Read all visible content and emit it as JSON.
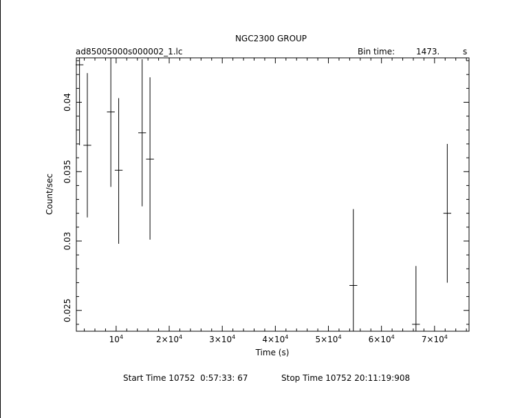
{
  "header": {
    "title": "NGC2300 GROUP",
    "file_name": "ad85005000s000002_1.lc",
    "bin_time_label": "Bin time:",
    "bin_time_value": "1473.",
    "bin_time_unit": "s"
  },
  "footer": {
    "start_label": "Start Time 10752  0:57:33: 67",
    "stop_label": "Stop Time 10752 20:11:19:908"
  },
  "chart_data": {
    "type": "scatter",
    "title": "NGC2300 GROUP",
    "xlabel": "Time (s)",
    "ylabel": "Count/sec",
    "xlim": [
      2500,
      76500
    ],
    "ylim": [
      0.0235,
      0.0432
    ],
    "grid": false,
    "x_ticks": [
      {
        "value": 10000,
        "base": "10",
        "exp": "4"
      },
      {
        "value": 20000,
        "base": "2×10",
        "exp": "4"
      },
      {
        "value": 30000,
        "base": "3×10",
        "exp": "4"
      },
      {
        "value": 40000,
        "base": "4×10",
        "exp": "4"
      },
      {
        "value": 50000,
        "base": "5×10",
        "exp": "4"
      },
      {
        "value": 60000,
        "base": "6×10",
        "exp": "4"
      },
      {
        "value": 70000,
        "base": "7×10",
        "exp": "4"
      }
    ],
    "y_ticks": [
      {
        "value": 0.025,
        "label": "0.025"
      },
      {
        "value": 0.03,
        "label": "0.03"
      },
      {
        "value": 0.035,
        "label": "0.035"
      },
      {
        "value": 0.04,
        "label": "0.04"
      }
    ],
    "points": [
      {
        "x": 3100,
        "y": 0.0427,
        "xerr": 736,
        "yerr_low": 0.0058,
        "yerr_high": 0.0058
      },
      {
        "x": 4570,
        "y": 0.0369,
        "xerr": 736,
        "yerr_low": 0.0052,
        "yerr_high": 0.0052
      },
      {
        "x": 9000,
        "y": 0.0393,
        "xerr": 736,
        "yerr_low": 0.0054,
        "yerr_high": 0.0054
      },
      {
        "x": 10480,
        "y": 0.0351,
        "xerr": 736,
        "yerr_low": 0.0053,
        "yerr_high": 0.0052
      },
      {
        "x": 14900,
        "y": 0.0378,
        "xerr": 736,
        "yerr_low": 0.0053,
        "yerr_high": 0.0053
      },
      {
        "x": 16380,
        "y": 0.0359,
        "xerr": 736,
        "yerr_low": 0.0058,
        "yerr_high": 0.0059
      },
      {
        "x": 54700,
        "y": 0.0268,
        "xerr": 736,
        "yerr_low": 0.0055,
        "yerr_high": 0.0055
      },
      {
        "x": 66500,
        "y": 0.024,
        "xerr": 736,
        "yerr_low": 0.004,
        "yerr_high": 0.0042
      },
      {
        "x": 72400,
        "y": 0.032,
        "xerr": 736,
        "yerr_low": 0.005,
        "yerr_high": 0.005
      }
    ],
    "colors": {
      "background": "#ffffff",
      "ink": "#000000"
    }
  }
}
